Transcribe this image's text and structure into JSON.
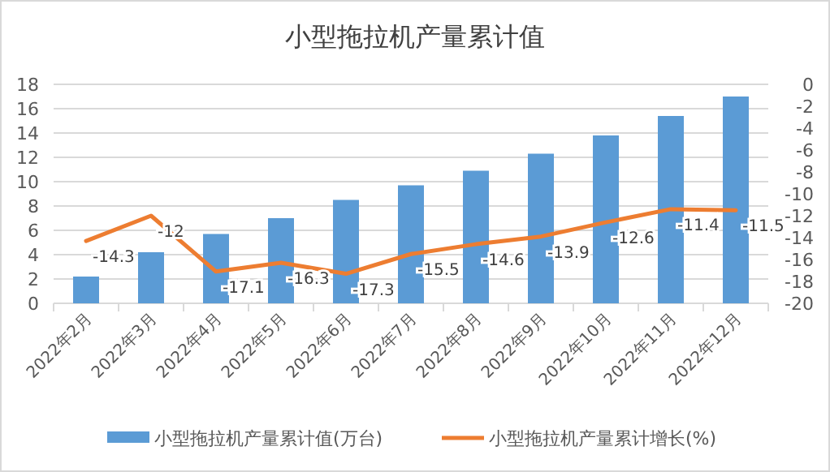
{
  "chart_data": {
    "type": "bar",
    "title": "小型拖拉机产量累计值",
    "categories": [
      "2022年2月",
      "2022年3月",
      "2022年4月",
      "2022年5月",
      "2022年6月",
      "2022年7月",
      "2022年8月",
      "2022年9月",
      "2022年10月",
      "2022年11月",
      "2022年12月"
    ],
    "series": [
      {
        "name": "小型拖拉机产量累计值(万台)",
        "color": "#5b9bd5",
        "values": [
          2.2,
          4.2,
          5.7,
          7.0,
          8.5,
          9.7,
          10.9,
          12.3,
          13.8,
          15.4,
          17.0
        ]
      },
      {
        "name": "小型拖拉机产量累计增长(%)",
        "color": "#ed7d31",
        "type": "line",
        "axis": "y2",
        "data_labels": true,
        "values": [
          -14.3,
          -12,
          -17.1,
          -16.3,
          -17.3,
          -15.5,
          -14.6,
          -13.9,
          -12.6,
          -11.4,
          -11.5
        ]
      }
    ],
    "ylim": [
      0,
      18
    ],
    "yticks": [
      0,
      2,
      4,
      6,
      8,
      10,
      12,
      14,
      16,
      18
    ],
    "y2lim": [
      -20,
      0
    ],
    "y2ticks": [
      0,
      -2,
      -4,
      -6,
      -8,
      -10,
      -12,
      -14,
      -16,
      -18,
      -20
    ],
    "grid": "y",
    "legend": "bottom"
  }
}
